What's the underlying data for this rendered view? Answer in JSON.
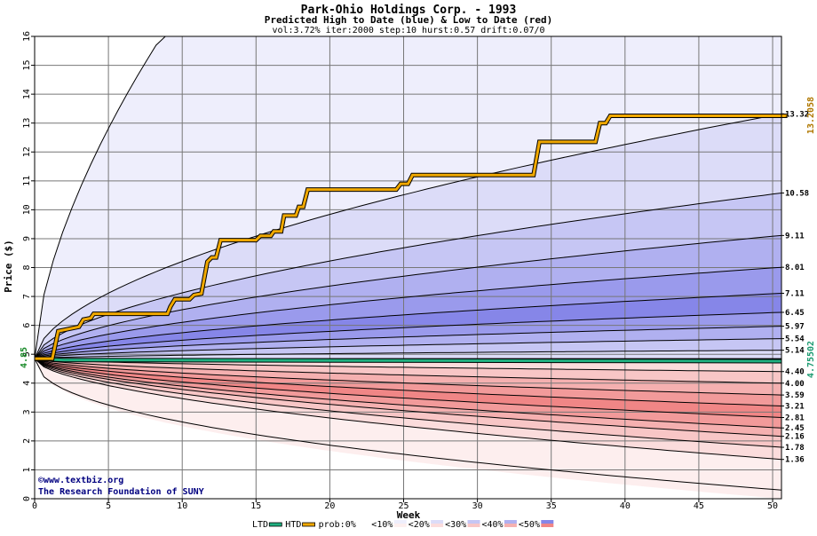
{
  "chart_data": {
    "type": "area",
    "title": "Park-Ohio Holdings Corp. - 1993",
    "subtitle": "Predicted High to Date (blue) &  Low to Date (red)",
    "params": "vol:3.72% iter:2000 step:10 hurst:0.57 drift:0.07/0",
    "xlabel": "Week",
    "ylabel": "Price ($)",
    "xlim": [
      0,
      50.6
    ],
    "ylim": [
      0,
      16
    ],
    "xticks": [
      0,
      5,
      10,
      15,
      20,
      25,
      30,
      35,
      40,
      45,
      50
    ],
    "yticks": [
      0,
      1,
      2,
      3,
      4,
      5,
      6,
      7,
      8,
      9,
      10,
      11,
      12,
      13,
      14,
      15,
      16
    ],
    "grid": true,
    "start_price": 4.85,
    "start_price_label": "4.85",
    "htd_final_label": "13.2058",
    "ltd_final_label": "4.75502",
    "right_labels": [
      "13.32",
      "10.58",
      "9.11",
      "8.01",
      "7.11",
      "6.45",
      "5.97",
      "5.54",
      "5.14",
      "4.40",
      "4.00",
      "3.59",
      "3.21",
      "2.81",
      "2.45",
      "2.16",
      "1.78",
      "1.36"
    ],
    "high_bands": [
      {
        "end": 16.0,
        "fill": "#eeeefc"
      },
      {
        "end": 13.32,
        "fill": "#dcdcf8"
      },
      {
        "end": 10.58,
        "fill": "#c6c6f4"
      },
      {
        "end": 9.11,
        "fill": "#b0b0f0"
      },
      {
        "end": 8.01,
        "fill": "#9a9aec"
      },
      {
        "end": 7.11,
        "fill": "#8686e8"
      },
      {
        "end": 6.45,
        "fill": "#9a9aec"
      },
      {
        "end": 5.97,
        "fill": "#b0b0f0"
      },
      {
        "end": 5.54,
        "fill": "#c6c6f4"
      },
      {
        "end": 5.14,
        "fill": "#dcdcf8"
      }
    ],
    "low_bands": [
      {
        "end": 0.0,
        "fill": "#fdeeee"
      },
      {
        "end": 1.36,
        "fill": "#fbdcdc"
      },
      {
        "end": 1.78,
        "fill": "#f8c6c6"
      },
      {
        "end": 2.16,
        "fill": "#f5b0b0"
      },
      {
        "end": 2.45,
        "fill": "#f29a9a"
      },
      {
        "end": 2.81,
        "fill": "#f08686"
      },
      {
        "end": 3.21,
        "fill": "#f29a9a"
      },
      {
        "end": 3.59,
        "fill": "#f5b0b0"
      },
      {
        "end": 4.0,
        "fill": "#f8c6c6"
      },
      {
        "end": 4.4,
        "fill": "#fbdcdc"
      }
    ],
    "htd_series": {
      "color": "#f0a800",
      "points": [
        [
          0,
          4.85
        ],
        [
          1.2,
          4.85
        ],
        [
          1.6,
          5.8
        ],
        [
          3,
          5.95
        ],
        [
          3.3,
          6.2
        ],
        [
          3.8,
          6.25
        ],
        [
          4,
          6.4
        ],
        [
          9,
          6.4
        ],
        [
          9.2,
          6.65
        ],
        [
          9.5,
          6.9
        ],
        [
          10.5,
          6.9
        ],
        [
          10.8,
          7.05
        ],
        [
          11.3,
          7.1
        ],
        [
          11.7,
          8.2
        ],
        [
          12,
          8.35
        ],
        [
          12.3,
          8.35
        ],
        [
          12.6,
          8.95
        ],
        [
          15,
          8.95
        ],
        [
          15.3,
          9.1
        ],
        [
          16,
          9.1
        ],
        [
          16.2,
          9.25
        ],
        [
          16.7,
          9.25
        ],
        [
          16.9,
          9.8
        ],
        [
          17.7,
          9.8
        ],
        [
          17.9,
          10.1
        ],
        [
          18.2,
          10.1
        ],
        [
          18.5,
          10.7
        ],
        [
          24.5,
          10.7
        ],
        [
          24.8,
          10.9
        ],
        [
          25.3,
          10.9
        ],
        [
          25.6,
          11.2
        ],
        [
          33.8,
          11.2
        ],
        [
          34.2,
          12.35
        ],
        [
          38,
          12.35
        ],
        [
          38.3,
          13.0
        ],
        [
          38.7,
          13.0
        ],
        [
          39,
          13.25
        ],
        [
          51,
          13.25
        ]
      ]
    },
    "ltd_series": {
      "color": "#20b080",
      "points": [
        [
          0,
          4.85
        ],
        [
          1,
          4.82
        ],
        [
          2,
          4.8
        ],
        [
          50.6,
          4.76
        ]
      ]
    },
    "legend": [
      {
        "label": "LTD",
        "kind": "line",
        "color": "#20b080"
      },
      {
        "label": "HTD",
        "kind": "line",
        "color": "#f0a800"
      },
      {
        "label": "prob:0%",
        "kind": "swatch",
        "color": "#ffffff"
      },
      {
        "label": "<10%",
        "kind": "swatch",
        "color": "#eeeefc",
        "color2": "#fdeeee"
      },
      {
        "label": "<20%",
        "kind": "swatch",
        "color": "#dcdcf8",
        "color2": "#fbdcdc"
      },
      {
        "label": "<30%",
        "kind": "swatch",
        "color": "#c6c6f4",
        "color2": "#f8c6c6"
      },
      {
        "label": "<40%",
        "kind": "swatch",
        "color": "#b0b0f0",
        "color2": "#f5b0b0"
      },
      {
        "label": "<50%",
        "kind": "swatch",
        "color": "#8686e8",
        "color2": "#f08686"
      }
    ]
  },
  "credits": {
    "website": "©www.textbiz.org",
    "org": "The Research Foundation of SUNY"
  }
}
